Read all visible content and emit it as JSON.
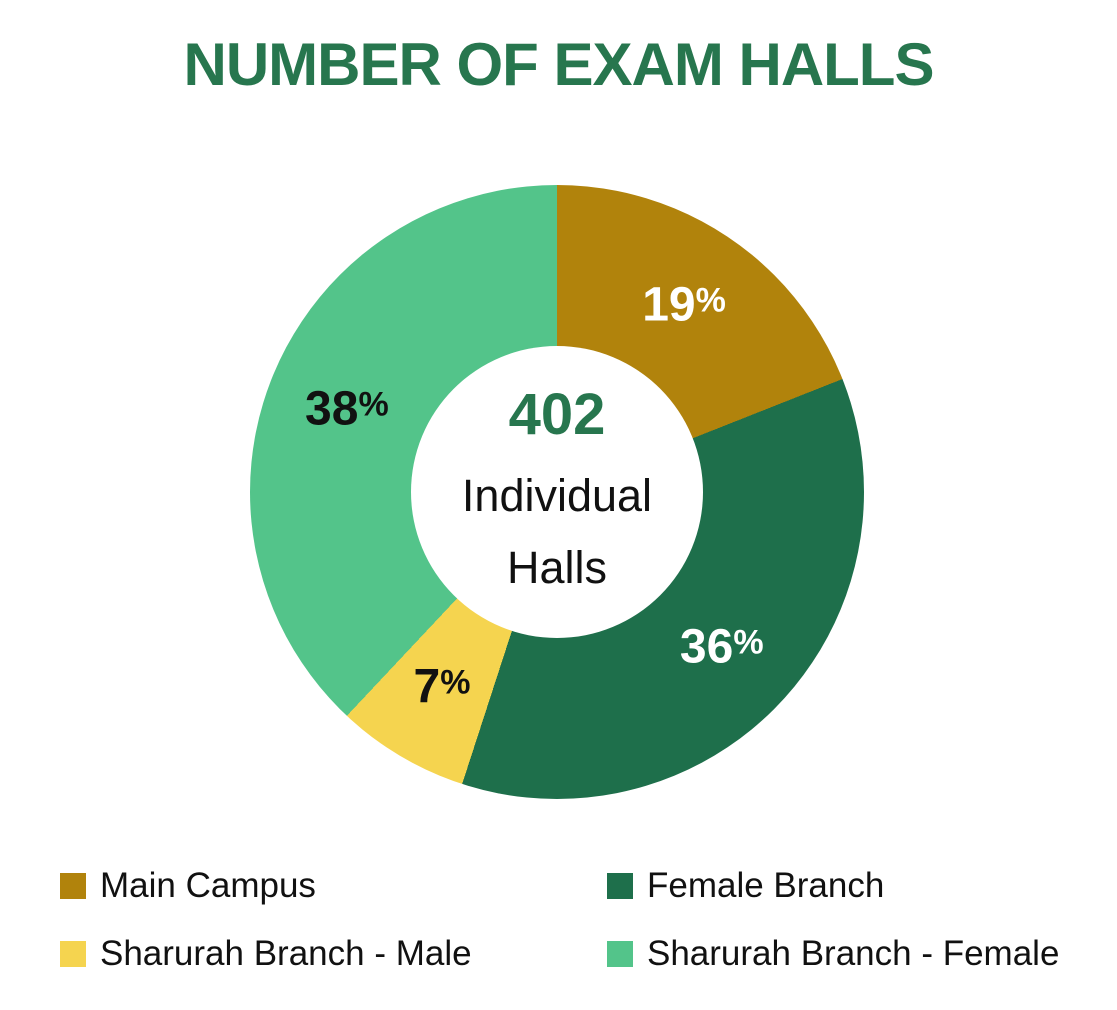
{
  "title": "NUMBER OF EXAM HALLS",
  "colors": {
    "title_green": "#27764E",
    "text_dark": "#111111",
    "background": "#FFFFFF"
  },
  "chart_data": {
    "type": "pie",
    "donut": true,
    "title": "NUMBER OF EXAM HALLS",
    "center_label": {
      "value": "402",
      "text": "Individual Halls"
    },
    "start_angle_deg": 0,
    "direction": "clockwise",
    "legend_position": "bottom",
    "segments": [
      {
        "label": "Main Campus",
        "pct": 19,
        "color": "#B1830C",
        "pct_label_color": "#FFFFFF"
      },
      {
        "label": "Female Branch",
        "pct": 36,
        "color": "#1E6F4B",
        "pct_label_color": "#FFFFFF"
      },
      {
        "label": "Sharurah Branch - Male",
        "pct": 7,
        "color": "#F5D44F",
        "pct_label_color": "#111111"
      },
      {
        "label": "Sharurah Branch - Female",
        "pct": 38,
        "color": "#53C48A",
        "pct_label_color": "#111111"
      }
    ]
  }
}
